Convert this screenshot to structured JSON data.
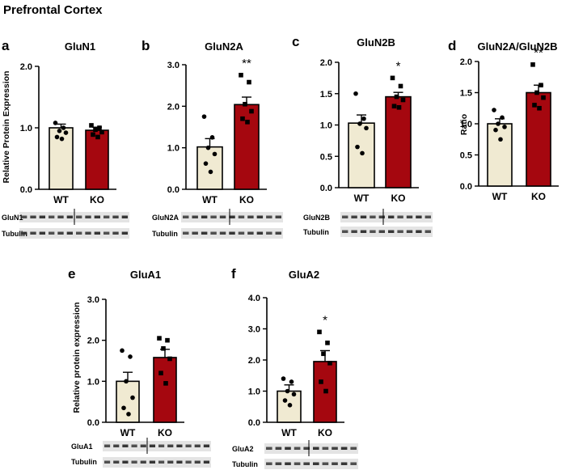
{
  "page_title": "Prefrontal Cortex",
  "colors": {
    "wt": "#f0ead2",
    "ko": "#a5070f",
    "axis": "#000000",
    "blot_bg": "#e4e4e4",
    "band": "#2a2a2a"
  },
  "chart_data": [
    {
      "panel": "a",
      "title": "GluN1",
      "type": "bar",
      "ylabel": "Relative Protein Expression",
      "ylim": [
        0,
        2.0
      ],
      "yticks": [
        "0.0",
        "1.0",
        "2.0"
      ],
      "ytick_values": [
        0,
        1.0,
        2.0
      ],
      "categories": [
        "WT",
        "KO"
      ],
      "values": [
        1.0,
        0.96
      ],
      "sem": [
        0.06,
        0.05
      ],
      "points": [
        [
          1.08,
          1.0,
          0.95,
          0.92,
          0.85,
          0.82
        ],
        [
          1.04,
          1.0,
          0.97,
          0.93,
          0.89,
          0.85
        ]
      ],
      "significance": "",
      "blot_labels": [
        "GluN1",
        "Tubulin"
      ]
    },
    {
      "panel": "b",
      "title": "GluN2A",
      "type": "bar",
      "ylabel": "",
      "ylim": [
        0,
        3.0
      ],
      "yticks": [
        "0.0",
        "1.0",
        "2.0",
        "3.0"
      ],
      "ytick_values": [
        0,
        1.0,
        2.0,
        3.0
      ],
      "categories": [
        "WT",
        "KO"
      ],
      "values": [
        1.02,
        2.04
      ],
      "sem": [
        0.2,
        0.18
      ],
      "points": [
        [
          1.75,
          1.25,
          1.0,
          0.85,
          0.62,
          0.42
        ],
        [
          2.75,
          2.58,
          2.05,
          1.88,
          1.7,
          1.62
        ]
      ],
      "significance": "**",
      "blot_labels": [
        "GluN2A",
        "Tubulin"
      ]
    },
    {
      "panel": "c",
      "title": "GluN2B",
      "type": "bar",
      "ylabel": "",
      "ylim": [
        0,
        2.0
      ],
      "yticks": [
        "0.0",
        "0.5",
        "1.0",
        "1.5",
        "2.0"
      ],
      "ytick_values": [
        0,
        0.5,
        1.0,
        1.5,
        2.0
      ],
      "categories": [
        "WT",
        "KO"
      ],
      "values": [
        1.03,
        1.45
      ],
      "sem": [
        0.13,
        0.07
      ],
      "points": [
        [
          1.5,
          1.1,
          1.02,
          0.95,
          0.65,
          0.55
        ],
        [
          1.75,
          1.62,
          1.45,
          1.4,
          1.3,
          1.28
        ]
      ],
      "significance": "*",
      "blot_labels": [
        "GluN2B",
        "Tubulin"
      ]
    },
    {
      "panel": "d",
      "title": "GluN2A/GluN2B",
      "type": "bar",
      "ylabel": "Ratio",
      "ylim": [
        0,
        2.0
      ],
      "yticks": [
        "0.0",
        "0.5",
        "1.0",
        "1.5",
        "2.0"
      ],
      "ytick_values": [
        0,
        0.5,
        1.0,
        1.5,
        2.0
      ],
      "categories": [
        "WT",
        "KO"
      ],
      "values": [
        1.0,
        1.5
      ],
      "sem": [
        0.08,
        0.12
      ],
      "points": [
        [
          1.22,
          1.1,
          1.0,
          0.95,
          0.9,
          0.75
        ],
        [
          1.95,
          1.62,
          1.5,
          1.42,
          1.3,
          1.25
        ]
      ],
      "significance": "**",
      "blot_labels": []
    },
    {
      "panel": "e",
      "title": "GluA1",
      "type": "bar",
      "ylabel": "Relative protein expression",
      "ylim": [
        0,
        3.0
      ],
      "yticks": [
        "0.0",
        "1.0",
        "2.0",
        "3.0"
      ],
      "ytick_values": [
        0,
        1.0,
        2.0,
        3.0
      ],
      "categories": [
        "WT",
        "KO"
      ],
      "values": [
        1.0,
        1.58
      ],
      "sem": [
        0.22,
        0.2
      ],
      "points": [
        [
          1.75,
          1.6,
          1.0,
          0.6,
          0.35,
          0.2
        ],
        [
          2.05,
          2.0,
          1.8,
          1.55,
          1.2,
          0.95
        ]
      ],
      "significance": "",
      "blot_labels": [
        "GluA1",
        "Tubulin"
      ]
    },
    {
      "panel": "f",
      "title": "GluA2",
      "type": "bar",
      "ylabel": "",
      "ylim": [
        0,
        4.0
      ],
      "yticks": [
        "0.0",
        "1.0",
        "2.0",
        "3.0",
        "4.0"
      ],
      "ytick_values": [
        0,
        1.0,
        2.0,
        3.0,
        4.0
      ],
      "categories": [
        "WT",
        "KO"
      ],
      "values": [
        1.0,
        1.95
      ],
      "sem": [
        0.2,
        0.35
      ],
      "points": [
        [
          1.4,
          1.3,
          1.0,
          0.9,
          0.7,
          0.55
        ],
        [
          2.9,
          2.55,
          2.2,
          1.9,
          1.3,
          1.0
        ]
      ],
      "significance": "*",
      "blot_labels": [
        "GluA2",
        "Tubulin"
      ]
    }
  ]
}
